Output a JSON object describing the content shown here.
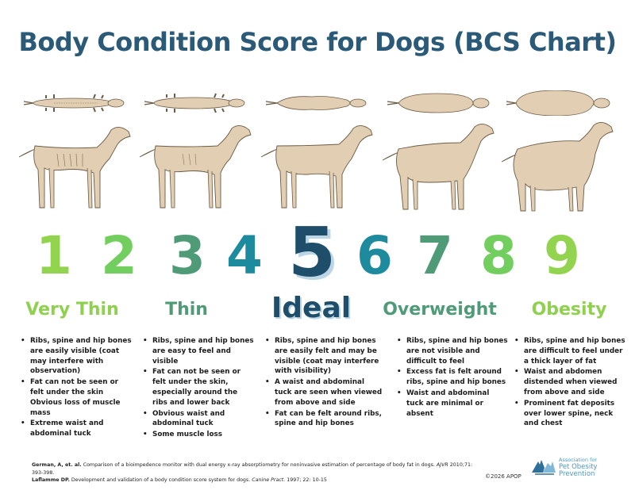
{
  "title": "Body Condition Score for Dogs (BCS Chart)",
  "scores": [
    {
      "n": "1",
      "color": "#92d44f"
    },
    {
      "n": "2",
      "color": "#72cf5f"
    },
    {
      "n": "3",
      "color": "#4f9b78"
    },
    {
      "n": "4",
      "color": "#1e8a9e"
    },
    {
      "n": "5",
      "color": "#1f4e6b"
    },
    {
      "n": "6",
      "color": "#1e8a9e"
    },
    {
      "n": "7",
      "color": "#4f9b78"
    },
    {
      "n": "8",
      "color": "#72cf5f"
    },
    {
      "n": "9",
      "color": "#92d44f"
    }
  ],
  "categories": [
    {
      "label": "Very Thin",
      "color": "#8fd14f",
      "bullets": [
        "Ribs, spine and hip bones are easily visible (coat may interfere with observation)",
        "Fat can not be seen or felt under the skin Obvious loss of muscle mass",
        "Extreme waist and abdominal tuck"
      ]
    },
    {
      "label": "Thin",
      "color": "#4f9b78",
      "bullets": [
        "Ribs, spine and hip bones are easy to feel and visible",
        "Fat can not be seen or felt under the skin, especially around the ribs and lower back",
        "Obvious waist and abdominal tuck",
        "Some muscle loss"
      ]
    },
    {
      "label": "Ideal",
      "color": "#1f4e6b",
      "bullets": [
        "Ribs, spine and hip bones are easily felt and may be visible (coat may interfere with visibility)",
        "A waist and abdominal tuck are seen when viewed from above and side",
        "Fat can be felt around ribs, spine and hip bones"
      ]
    },
    {
      "label": "Overweight",
      "color": "#4f9b78",
      "bullets": [
        "Ribs, spine and hip bones are not visible and difficult to feel",
        "Excess fat is felt around ribs, spine and hip bones",
        "Waist and abdominal tuck are minimal or absent"
      ]
    },
    {
      "label": "Obesity",
      "color": "#8fd14f",
      "bullets": [
        "Ribs, spine and hip bones are difficult to feel under a thick layer of fat",
        "Waist and abdomen distended when viewed from above and side",
        "Prominent fat deposits over lower spine, neck and chest"
      ]
    }
  ],
  "references": [
    {
      "author": "German, A, et. al.",
      "text": "Comparison of a bioimpedence monitor with dual energy x-ray absorptiometry for noninvasive estimation of percentage of body fat in dogs.",
      "journal": "AJVR",
      "cite": "2010;71: 393-398."
    },
    {
      "author": "Laflamme DP.",
      "text": "Development and validation of a body condition score system for dogs.",
      "journal": "Canine Pract.",
      "cite": "1997; 22: 10-15"
    }
  ],
  "copyright": "©2026 APOP",
  "logo": {
    "line1": "Association for",
    "line2": "Pet Obesity",
    "line3": "Prevention",
    "color": "#4a9ac4"
  }
}
